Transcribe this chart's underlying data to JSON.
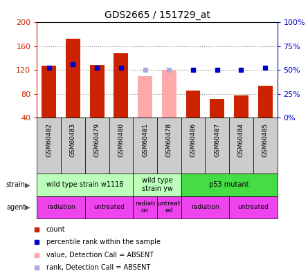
{
  "title": "GDS2665 / 151729_at",
  "samples": [
    "GSM60482",
    "GSM60483",
    "GSM60479",
    "GSM60480",
    "GSM60481",
    "GSM60478",
    "GSM60486",
    "GSM60487",
    "GSM60484",
    "GSM60485"
  ],
  "counts": [
    127,
    172,
    128,
    148,
    110,
    120,
    85,
    72,
    77,
    93
  ],
  "ranks": [
    52,
    56,
    52,
    52,
    50,
    50,
    50,
    50,
    50,
    52
  ],
  "absent_flags": [
    false,
    false,
    false,
    false,
    true,
    true,
    false,
    false,
    false,
    false
  ],
  "ylim_left": [
    40,
    200
  ],
  "ylim_right": [
    0,
    100
  ],
  "y_ticks_left": [
    40,
    80,
    120,
    160,
    200
  ],
  "y_ticks_right": [
    0,
    25,
    50,
    75,
    100
  ],
  "y_tick_labels_right": [
    "0%",
    "25%",
    "50%",
    "75%",
    "100%"
  ],
  "bar_color_present": "#cc2200",
  "bar_color_absent": "#ffaaaa",
  "rank_color_present": "#0000cc",
  "rank_color_absent": "#aaaadd",
  "rank_marker": "s",
  "rank_markersize": 5,
  "strain_groups": [
    {
      "label": "wild type strain w1118",
      "start": 0,
      "end": 4,
      "color": "#bbffbb"
    },
    {
      "label": "wild type\nstrain yw",
      "start": 4,
      "end": 6,
      "color": "#bbffbb"
    },
    {
      "label": "p53 mutant",
      "start": 6,
      "end": 10,
      "color": "#44dd44"
    }
  ],
  "agent_groups": [
    {
      "label": "radiation",
      "start": 0,
      "end": 2,
      "color": "#ee44ee"
    },
    {
      "label": "untreated",
      "start": 2,
      "end": 4,
      "color": "#ee44ee"
    },
    {
      "label": "radiati-\non",
      "start": 4,
      "end": 5,
      "color": "#ee44ee"
    },
    {
      "label": "untreat-\ned",
      "start": 5,
      "end": 6,
      "color": "#ee44ee"
    },
    {
      "label": "radiation",
      "start": 6,
      "end": 8,
      "color": "#ee44ee"
    },
    {
      "label": "untreated",
      "start": 8,
      "end": 10,
      "color": "#ee44ee"
    }
  ],
  "legend_items": [
    {
      "color": "#cc2200",
      "label": "count"
    },
    {
      "color": "#0000cc",
      "label": "percentile rank within the sample"
    },
    {
      "color": "#ffaaaa",
      "label": "value, Detection Call = ABSENT"
    },
    {
      "color": "#aaaadd",
      "label": "rank, Detection Call = ABSENT"
    }
  ],
  "bar_width": 0.6
}
